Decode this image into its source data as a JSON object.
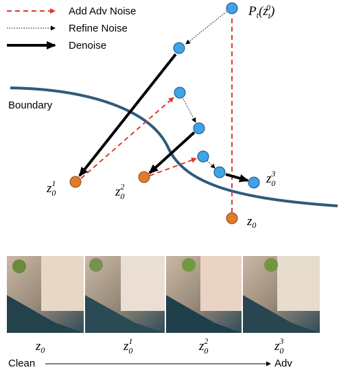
{
  "legend": [
    {
      "label": "Add Adv Noise"
    },
    {
      "label": "Refine Noise"
    },
    {
      "label": "Denoise"
    }
  ],
  "boundary_label": "Boundary",
  "point_labels": {
    "target": {
      "base": "P",
      "sub": "t",
      "open": "(z",
      "inner_sub": "t",
      "inner_sup": "0",
      "close": ")"
    },
    "z0": {
      "base": "z",
      "sub": "0"
    },
    "z1": {
      "base": "z",
      "sub": "0",
      "sup": "1"
    },
    "z2": {
      "base": "z",
      "sub": "0",
      "sup": "2"
    },
    "z3": {
      "base": "z",
      "sub": "0",
      "sup": "3"
    }
  },
  "captions": [
    {
      "base": "z",
      "sub": "0"
    },
    {
      "base": "z",
      "sub": "0",
      "sup": "1"
    },
    {
      "base": "z",
      "sub": "0",
      "sup": "2"
    },
    {
      "base": "z",
      "sub": "0",
      "sup": "3"
    }
  ],
  "progression": {
    "start": "Clean",
    "end": "Adv"
  }
}
